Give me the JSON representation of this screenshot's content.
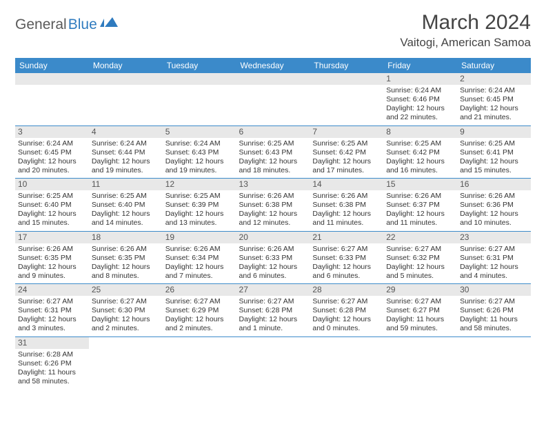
{
  "brand": {
    "part1": "General",
    "part2": "Blue",
    "color1": "#5a5a5a",
    "color2": "#2f7bbf"
  },
  "title": "March 2024",
  "location": "Vaitogi, American Samoa",
  "theme": {
    "header_bg": "#3b8aca",
    "header_fg": "#ffffff",
    "daynum_bg": "#e8e8e8",
    "border_color": "#3b8aca",
    "text_color": "#333333"
  },
  "weekdays": [
    "Sunday",
    "Monday",
    "Tuesday",
    "Wednesday",
    "Thursday",
    "Friday",
    "Saturday"
  ],
  "weeks": [
    [
      {
        "blank": true
      },
      {
        "blank": true
      },
      {
        "blank": true
      },
      {
        "blank": true
      },
      {
        "blank": true
      },
      {
        "day": "1",
        "sunrise": "6:24 AM",
        "sunset": "6:46 PM",
        "daylight": "12 hours and 22 minutes."
      },
      {
        "day": "2",
        "sunrise": "6:24 AM",
        "sunset": "6:45 PM",
        "daylight": "12 hours and 21 minutes."
      }
    ],
    [
      {
        "day": "3",
        "sunrise": "6:24 AM",
        "sunset": "6:45 PM",
        "daylight": "12 hours and 20 minutes."
      },
      {
        "day": "4",
        "sunrise": "6:24 AM",
        "sunset": "6:44 PM",
        "daylight": "12 hours and 19 minutes."
      },
      {
        "day": "5",
        "sunrise": "6:24 AM",
        "sunset": "6:43 PM",
        "daylight": "12 hours and 19 minutes."
      },
      {
        "day": "6",
        "sunrise": "6:25 AM",
        "sunset": "6:43 PM",
        "daylight": "12 hours and 18 minutes."
      },
      {
        "day": "7",
        "sunrise": "6:25 AM",
        "sunset": "6:42 PM",
        "daylight": "12 hours and 17 minutes."
      },
      {
        "day": "8",
        "sunrise": "6:25 AM",
        "sunset": "6:42 PM",
        "daylight": "12 hours and 16 minutes."
      },
      {
        "day": "9",
        "sunrise": "6:25 AM",
        "sunset": "6:41 PM",
        "daylight": "12 hours and 15 minutes."
      }
    ],
    [
      {
        "day": "10",
        "sunrise": "6:25 AM",
        "sunset": "6:40 PM",
        "daylight": "12 hours and 15 minutes."
      },
      {
        "day": "11",
        "sunrise": "6:25 AM",
        "sunset": "6:40 PM",
        "daylight": "12 hours and 14 minutes."
      },
      {
        "day": "12",
        "sunrise": "6:25 AM",
        "sunset": "6:39 PM",
        "daylight": "12 hours and 13 minutes."
      },
      {
        "day": "13",
        "sunrise": "6:26 AM",
        "sunset": "6:38 PM",
        "daylight": "12 hours and 12 minutes."
      },
      {
        "day": "14",
        "sunrise": "6:26 AM",
        "sunset": "6:38 PM",
        "daylight": "12 hours and 11 minutes."
      },
      {
        "day": "15",
        "sunrise": "6:26 AM",
        "sunset": "6:37 PM",
        "daylight": "12 hours and 11 minutes."
      },
      {
        "day": "16",
        "sunrise": "6:26 AM",
        "sunset": "6:36 PM",
        "daylight": "12 hours and 10 minutes."
      }
    ],
    [
      {
        "day": "17",
        "sunrise": "6:26 AM",
        "sunset": "6:35 PM",
        "daylight": "12 hours and 9 minutes."
      },
      {
        "day": "18",
        "sunrise": "6:26 AM",
        "sunset": "6:35 PM",
        "daylight": "12 hours and 8 minutes."
      },
      {
        "day": "19",
        "sunrise": "6:26 AM",
        "sunset": "6:34 PM",
        "daylight": "12 hours and 7 minutes."
      },
      {
        "day": "20",
        "sunrise": "6:26 AM",
        "sunset": "6:33 PM",
        "daylight": "12 hours and 6 minutes."
      },
      {
        "day": "21",
        "sunrise": "6:27 AM",
        "sunset": "6:33 PM",
        "daylight": "12 hours and 6 minutes."
      },
      {
        "day": "22",
        "sunrise": "6:27 AM",
        "sunset": "6:32 PM",
        "daylight": "12 hours and 5 minutes."
      },
      {
        "day": "23",
        "sunrise": "6:27 AM",
        "sunset": "6:31 PM",
        "daylight": "12 hours and 4 minutes."
      }
    ],
    [
      {
        "day": "24",
        "sunrise": "6:27 AM",
        "sunset": "6:31 PM",
        "daylight": "12 hours and 3 minutes."
      },
      {
        "day": "25",
        "sunrise": "6:27 AM",
        "sunset": "6:30 PM",
        "daylight": "12 hours and 2 minutes."
      },
      {
        "day": "26",
        "sunrise": "6:27 AM",
        "sunset": "6:29 PM",
        "daylight": "12 hours and 2 minutes."
      },
      {
        "day": "27",
        "sunrise": "6:27 AM",
        "sunset": "6:28 PM",
        "daylight": "12 hours and 1 minute."
      },
      {
        "day": "28",
        "sunrise": "6:27 AM",
        "sunset": "6:28 PM",
        "daylight": "12 hours and 0 minutes."
      },
      {
        "day": "29",
        "sunrise": "6:27 AM",
        "sunset": "6:27 PM",
        "daylight": "11 hours and 59 minutes."
      },
      {
        "day": "30",
        "sunrise": "6:27 AM",
        "sunset": "6:26 PM",
        "daylight": "11 hours and 58 minutes."
      }
    ],
    [
      {
        "day": "31",
        "sunrise": "6:28 AM",
        "sunset": "6:26 PM",
        "daylight": "11 hours and 58 minutes."
      },
      {
        "blank": true
      },
      {
        "blank": true
      },
      {
        "blank": true
      },
      {
        "blank": true
      },
      {
        "blank": true
      },
      {
        "blank": true
      }
    ]
  ],
  "labels": {
    "sunrise": "Sunrise: ",
    "sunset": "Sunset: ",
    "daylight": "Daylight: "
  }
}
